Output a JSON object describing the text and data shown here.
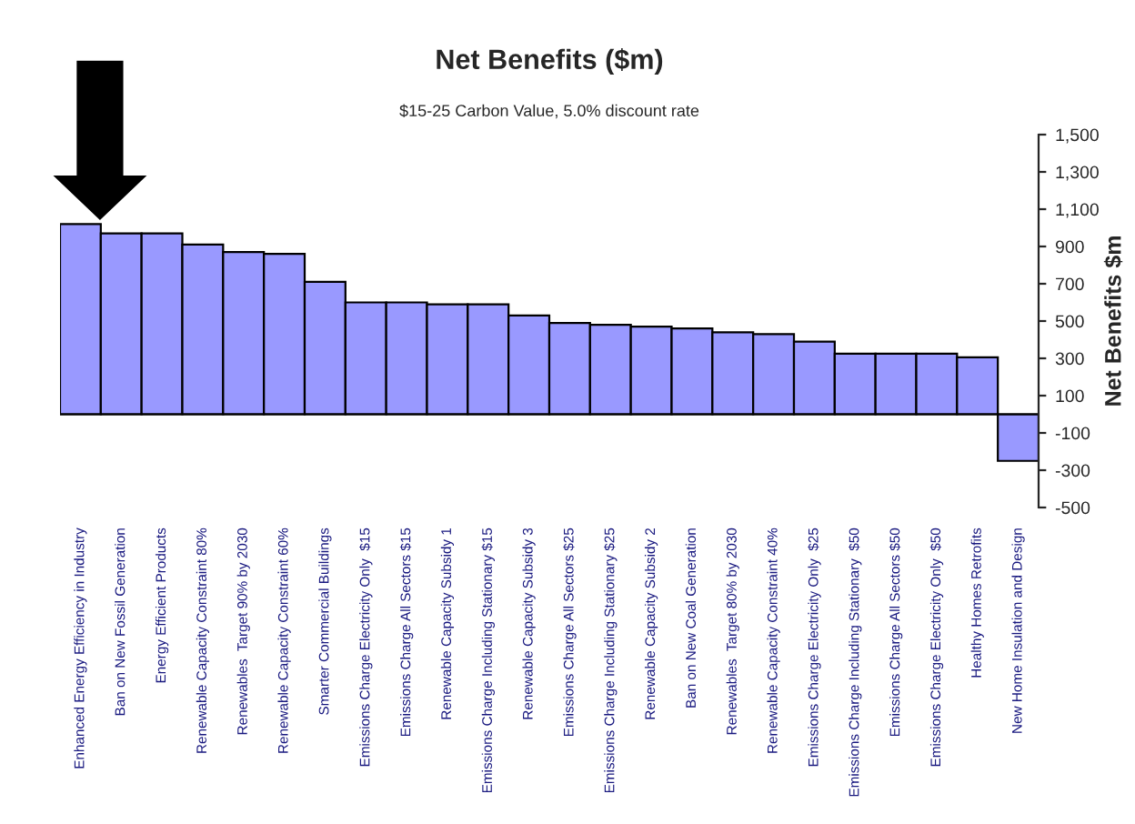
{
  "chart_data": {
    "type": "bar",
    "title": "Net Benefits ($m)",
    "subtitle": "$15-25 Carbon Value, 5.0% discount rate",
    "ylabel": "Net Benefits $m",
    "categories": [
      "Enhanced Energy Efficiency in Industry",
      "Ban on New Fossil Generation",
      "Energy Efficient Products",
      "Renewable Capacity Constraint 80%",
      "Renewables  Target 90% by 2030",
      "Renewable Capacity Constraint 60%",
      "Smarter Commercial Buildings",
      "Emissions Charge Electricity Only  $15",
      "Emissions Charge All Sectors $15",
      "Renewable Capacity Subsidy 1",
      "Emissions Charge Including Stationary $15",
      "Renewable Capacity Subsidy 3",
      "Emissions Charge All Sectors $25",
      "Emissions Charge Including Stationary $25",
      "Renewable Capacity Subsidy 2",
      "Ban on New Coal Generation",
      "Renewables  Target 80% by 2030",
      "Renewable Capacity Constraint 40%",
      "Emissions Charge Electricity Only  $25",
      "Emissions Charge Including Stationary  $50",
      "Emissions Charge All Sectors $50",
      "Emissions Charge Electricity Only  $50",
      "Healthy Homes Retrofits",
      "New Home Insulation and Design"
    ],
    "values": [
      1020,
      970,
      970,
      910,
      870,
      860,
      710,
      600,
      600,
      590,
      590,
      530,
      490,
      480,
      470,
      460,
      440,
      430,
      390,
      325,
      325,
      325,
      305,
      -250
    ],
    "color": "#9999ff",
    "ylim": [
      -500,
      1500
    ],
    "yticks": [
      {
        "value": -500,
        "label": "-500"
      },
      {
        "value": -300,
        "label": "-300"
      },
      {
        "value": -100,
        "label": "-100"
      },
      {
        "value": 100,
        "label": "100"
      },
      {
        "value": 300,
        "label": "300"
      },
      {
        "value": 500,
        "label": "500"
      },
      {
        "value": 700,
        "label": "700"
      },
      {
        "value": 900,
        "label": "900"
      },
      {
        "value": 1100,
        "label": "1,100"
      },
      {
        "value": 1300,
        "label": "1,300"
      },
      {
        "value": 1500,
        "label": "1,500"
      }
    ],
    "grid": false
  }
}
